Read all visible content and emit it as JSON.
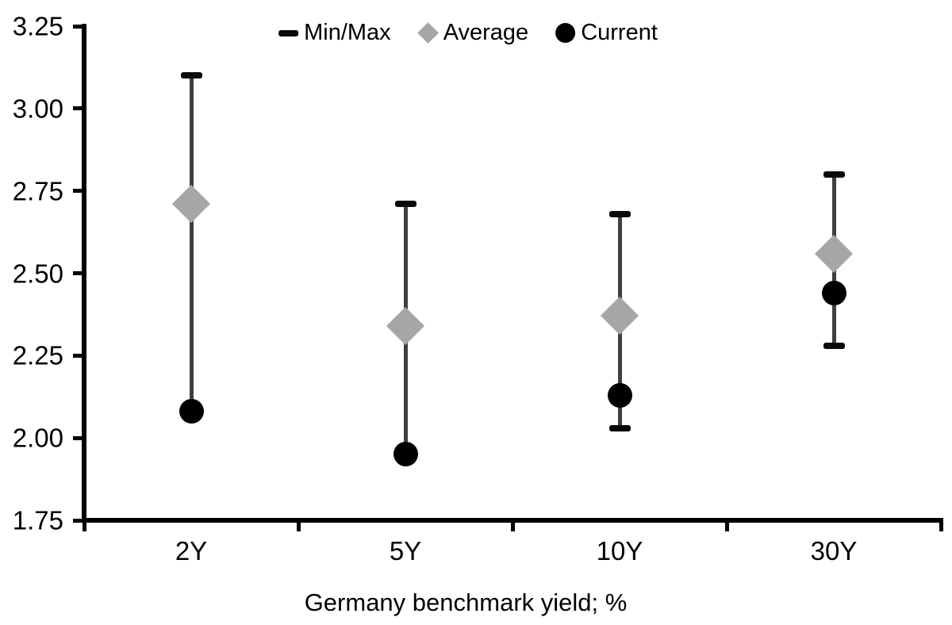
{
  "chart_data": {
    "type": "scatter",
    "subtype": "min-max-range-dot-plot",
    "title": "",
    "xlabel": "Germany benchmark yield; %",
    "ylabel": "",
    "categories": [
      "2Y",
      "5Y",
      "10Y",
      "30Y"
    ],
    "ylim": [
      1.75,
      3.25
    ],
    "ytick_labels": [
      "3.25",
      "3.00",
      "2.75",
      "2.50",
      "2.25",
      "2.00",
      "1.75"
    ],
    "grid": false,
    "background_color": "#ffffff",
    "axis_color": "#000000",
    "legend": {
      "position": "top-center",
      "entries": [
        "Min/Max",
        "Average",
        "Current"
      ]
    },
    "series": [
      {
        "name": "Min/Max",
        "marker": "dash",
        "color": "#0a0a0a",
        "line_color": "#3f3f3f",
        "max": [
          3.1,
          2.71,
          2.68,
          2.8
        ],
        "min": [
          2.08,
          1.95,
          2.03,
          2.28
        ]
      },
      {
        "name": "Average",
        "marker": "diamond",
        "color": "#a6a6a6",
        "values": [
          2.71,
          2.34,
          2.37,
          2.56
        ]
      },
      {
        "name": "Current",
        "marker": "circle",
        "color": "#000000",
        "values": [
          2.08,
          1.95,
          2.13,
          2.44
        ]
      }
    ]
  }
}
